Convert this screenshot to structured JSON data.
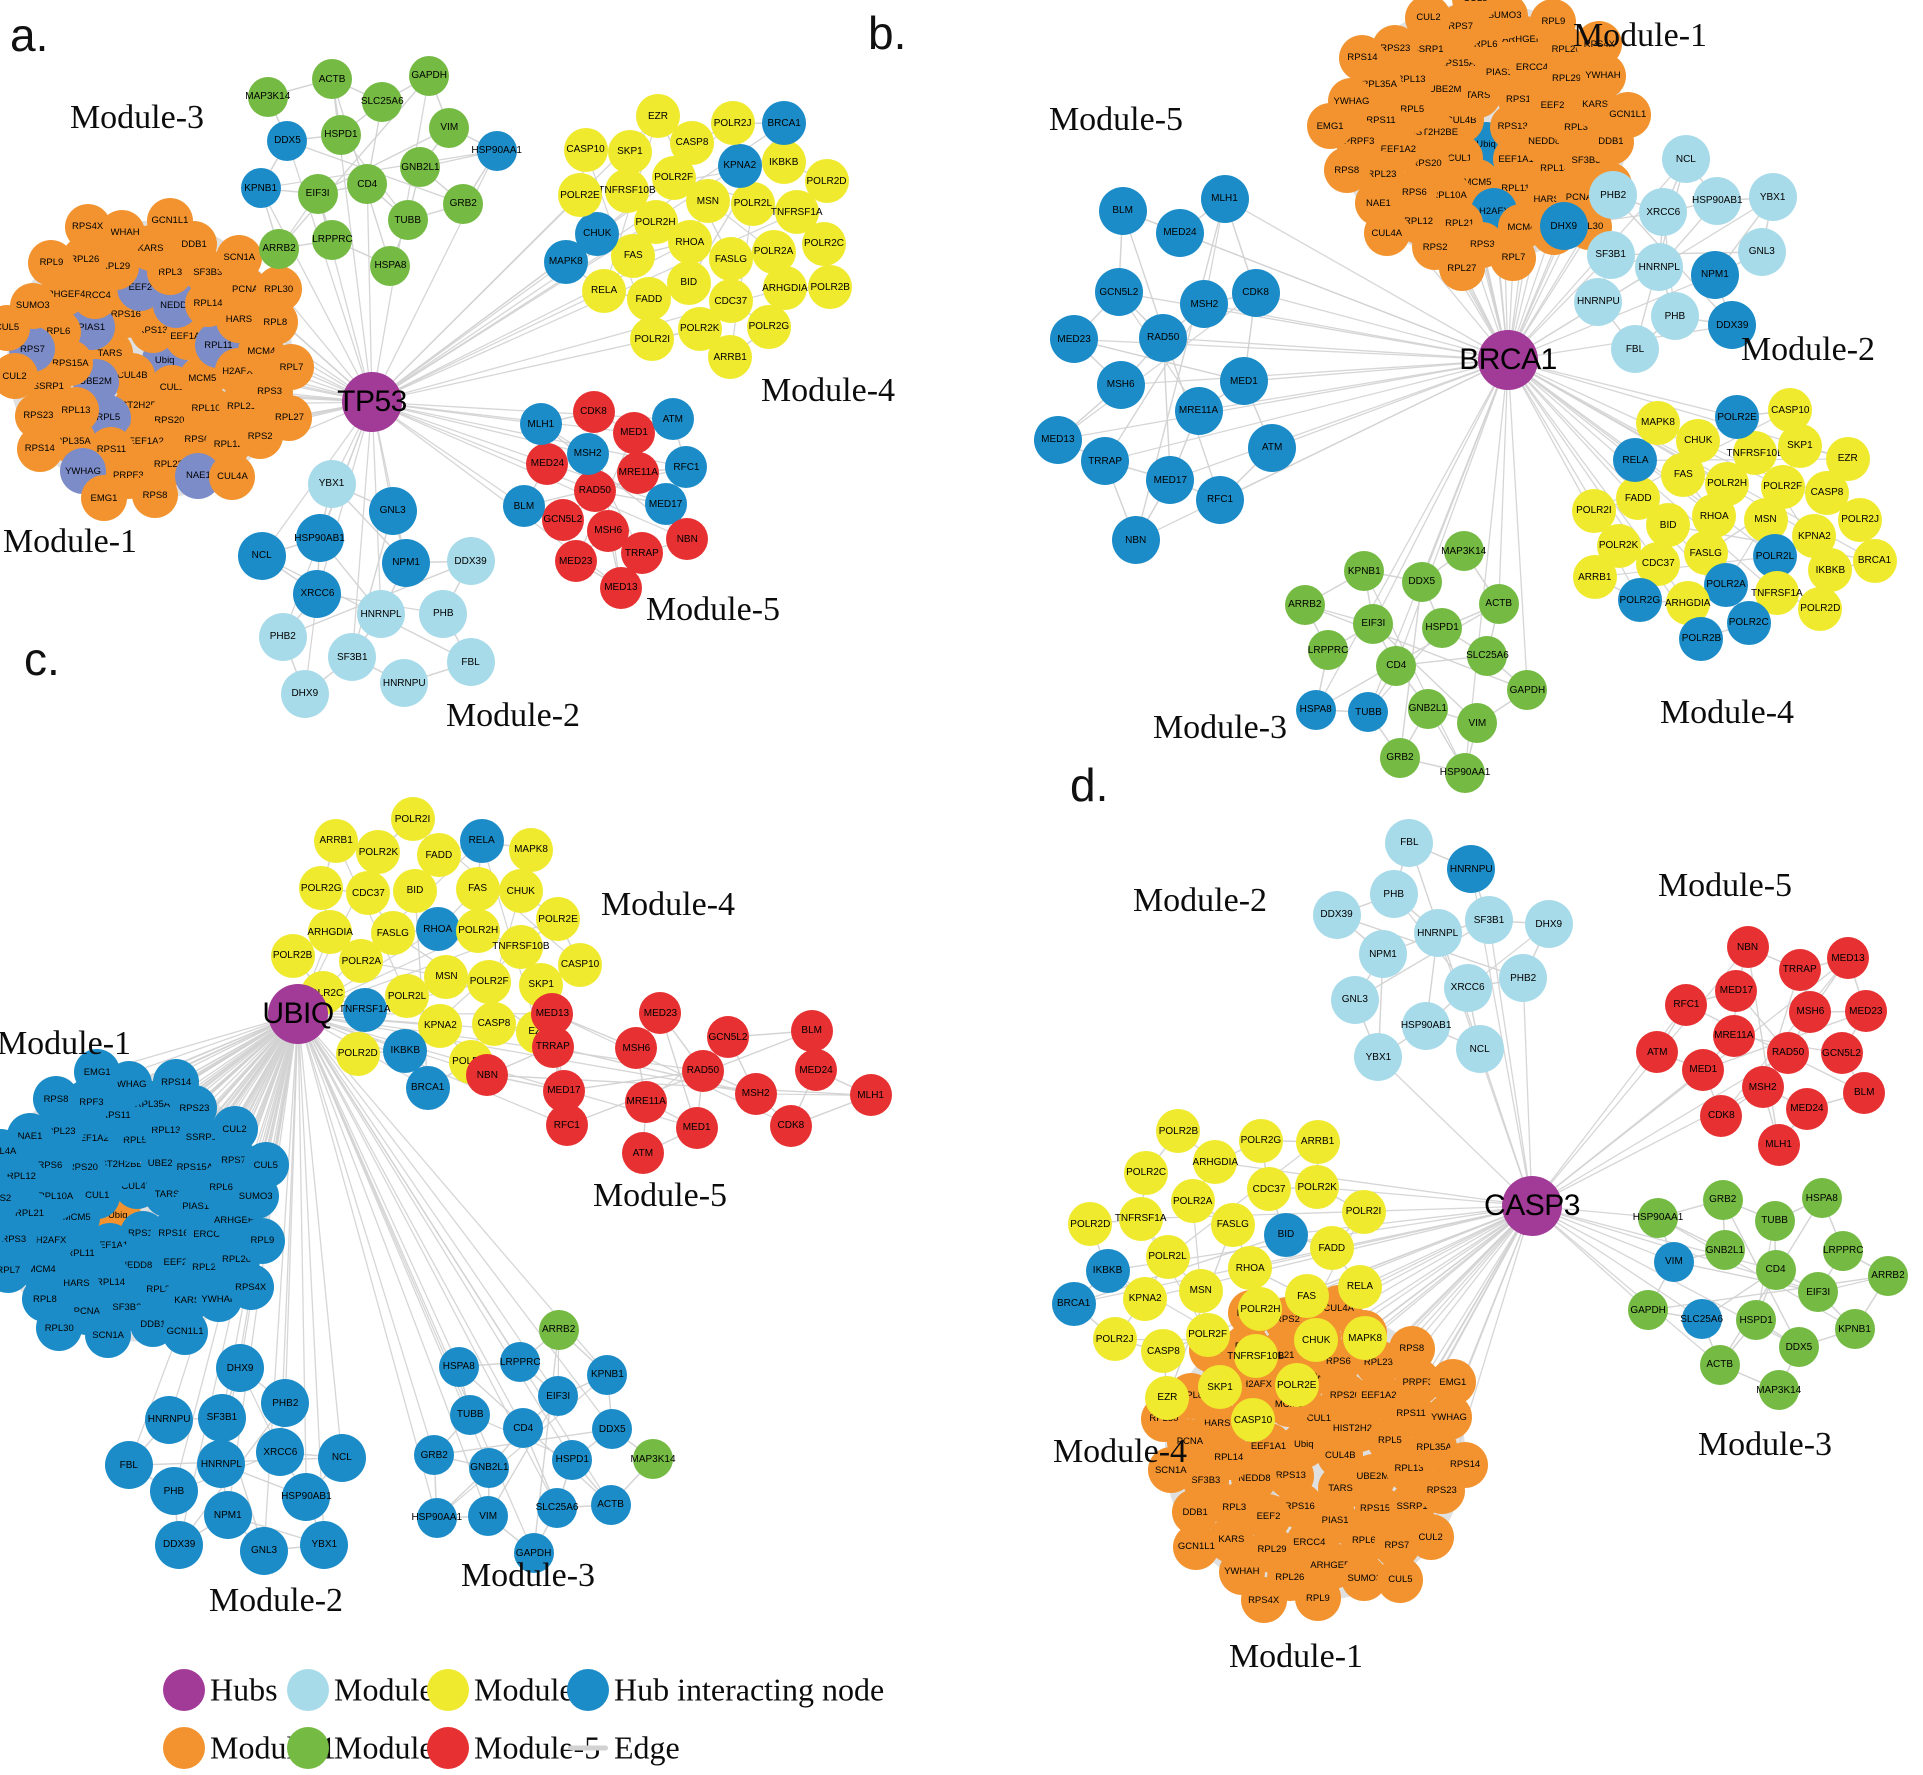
{
  "colors": {
    "hub": "#A23A97",
    "m1": "#F2932F",
    "m2": "#A8DBE9",
    "m3": "#74BA43",
    "m4": "#F0EA2E",
    "m5": "#E73031",
    "hib": "#1B8CC8",
    "slate": "#7C8CC9",
    "edge": "#D2D2D2"
  },
  "modules": {
    "module1_genes": [
      "Ubiq",
      "CUL4B",
      "RPS13",
      "CUL1",
      "TARS",
      "EEF1A1",
      "HIST2H2BE",
      "RPS16",
      "MCM5",
      "UBE2M",
      "NEDD8",
      "RPS20",
      "PIAS1",
      "RPL11",
      "RPL5",
      "EEF2",
      "RPL10A",
      "RPS15A",
      "RPL14",
      "EEF1A2",
      "ERCC4",
      "H2AFX",
      "RPL13",
      "RPL3",
      "RPS6",
      "RPL6",
      "HARS",
      "RPS11",
      "RPL29",
      "RPL21",
      "SSRP1",
      "SF3B3",
      "RPL23",
      "ARHGEF4",
      "MCM4",
      "RPL35A",
      "KARS",
      "RPL12",
      "RPS7",
      "PCNA",
      "PRPF3",
      "RPL26",
      "RPS3",
      "RPS23",
      "DDB1",
      "NAE1",
      "SUMO3",
      "RPL8",
      "YWHAG",
      "YWHAH",
      "RPS2",
      "CUL2",
      "SCN1A",
      "RPS8",
      "RPL9",
      "RPL7",
      "RPS14",
      "GCN1L1",
      "CUL4A",
      "CUL5",
      "RPL30",
      "EMG1",
      "RPS4X",
      "RPL27"
    ],
    "module2_genes": [
      "HNRNPL",
      "XRCC6",
      "NPM1",
      "SF3B1",
      "HSP90AB1",
      "PHB",
      "PHB2",
      "GNL3",
      "HNRNPU",
      "NCL",
      "DDX39",
      "DHX9",
      "YBX1",
      "FBL"
    ],
    "module3_genes": [
      "CD4",
      "HSPD1",
      "GNB2L1",
      "EIF3I",
      "SLC25A6",
      "TUBB",
      "DDX5",
      "VIM",
      "LRPPRC",
      "ACTB",
      "GRB2",
      "KPNB1",
      "GAPDH",
      "HSPA8",
      "MAP3K14",
      "HSP90AA1",
      "ARRB2"
    ],
    "module4_genes": [
      "RHOA",
      "MSN",
      "FASLG",
      "POLR2H",
      "POLR2L",
      "BID",
      "POLR2F",
      "POLR2A",
      "FAS",
      "KPNA2",
      "CDC37",
      "TNFRSF10B",
      "TNFRSF1A",
      "FADD",
      "CASP8",
      "ARHGDIA",
      "CHUK",
      "IKBKB",
      "POLR2K",
      "SKP1",
      "POLR2C",
      "RELA",
      "POLR2J",
      "POLR2G",
      "POLR2E",
      "POLR2D",
      "POLR2I",
      "EZR",
      "POLR2B",
      "MAPK8",
      "BRCA1",
      "ARRB1",
      "CASP10"
    ],
    "module5_genes": [
      "RAD50",
      "MRE11A",
      "MSH6",
      "MSH2",
      "MED17",
      "GCN5L2",
      "MED1",
      "TRRAP",
      "MED24",
      "RFC1",
      "MED23",
      "CDK8",
      "NBN",
      "BLM",
      "ATM",
      "MED13",
      "MLH1"
    ]
  },
  "panels": [
    {
      "letter": "a.",
      "hub": {
        "label": "TP53"
      },
      "clusters": [
        {
          "module": "Module-1",
          "genes_ref": "module1_genes",
          "base_color": "m1",
          "overrides": {
            "RPL11": "slate",
            "RPL5": "slate",
            "EEF2": "slate",
            "UBE2M": "slate",
            "NEDD8": "slate",
            "PIAS1": "slate",
            "RPS7": "slate",
            "NAE1": "slate",
            "Ubiq": "slate",
            "YWHAG": "slate"
          }
        },
        {
          "module": "Module-2",
          "genes_ref": "module2_genes",
          "base_color": "m2",
          "overrides": {
            "XRCC6": "hib",
            "NPM1": "hib",
            "HSP90AB1": "hib",
            "GNL3": "hib",
            "NCL": "hib"
          }
        },
        {
          "module": "Module-3",
          "genes_ref": "module3_genes",
          "base_color": "m3",
          "overrides": {
            "DDX5": "hib",
            "KPNB1": "hib",
            "HSP90AA1": "hib"
          }
        },
        {
          "module": "Module-4",
          "genes_ref": "module4_genes",
          "base_color": "m4",
          "overrides": {
            "KPNA2": "hib",
            "CHUK": "hib",
            "MAPK8": "hib",
            "BRCA1": "hib"
          }
        },
        {
          "module": "Module-5",
          "genes_ref": "module5_genes",
          "base_color": "m5",
          "overrides": {
            "MSH2": "hib",
            "MED17": "hib",
            "BLM": "hib",
            "ATM": "hib",
            "RFC1": "hib",
            "MLH1": "hib"
          }
        }
      ]
    },
    {
      "letter": "b.",
      "hub": {
        "label": "BRCA1"
      },
      "clusters": [
        {
          "module": "Module-1",
          "genes_ref": "module1_genes",
          "base_color": "m1",
          "overrides": {
            "Ubiq": "hib",
            "H2AFX": "hib"
          }
        },
        {
          "module": "Module-2",
          "genes_ref": "module2_genes",
          "base_color": "m2",
          "overrides": {
            "NPM1": "hib",
            "DHX9": "hib",
            "DDX39": "hib"
          }
        },
        {
          "module": "Module-3",
          "genes_ref": "module3_genes",
          "base_color": "m3",
          "overrides": {
            "TUBB": "hib",
            "HSPA8": "hib"
          }
        },
        {
          "module": "Module-4",
          "genes_ref": "module4_genes",
          "base_color": "m4",
          "overrides": {
            "POLR2A": "hib",
            "POLR2B": "hib",
            "POLR2C": "hib",
            "POLR2L": "hib",
            "POLR2E": "hib",
            "POLR2G": "hib",
            "RELA": "hib"
          }
        },
        {
          "module": "Module-5",
          "genes_ref": "module5_genes",
          "base_color": "hib",
          "overrides": {}
        }
      ]
    },
    {
      "letter": "c.",
      "hub": {
        "label": "UBIQ"
      },
      "clusters": [
        {
          "module": "Module-1",
          "genes_ref": "module1_genes",
          "base_color": "hib",
          "overrides": {
            "Ubiq": "m1"
          }
        },
        {
          "module": "Module-2",
          "genes_ref": "module2_genes",
          "base_color": "hib",
          "overrides": {}
        },
        {
          "module": "Module-3",
          "genes_ref": "module3_genes",
          "base_color": "hib",
          "overrides": {
            "ARRB2": "m3",
            "MAP3K14": "m3"
          }
        },
        {
          "module": "Module-4",
          "genes_ref": "module4_genes",
          "base_color": "m4",
          "overrides": {
            "BRCA1": "hib",
            "IKBKB": "hib",
            "TNFRSF1A": "hib",
            "RELA": "hib",
            "RHOA": "hib"
          }
        },
        {
          "module": "Module-5",
          "genes_ref": "module5_genes",
          "base_color": "m5",
          "overrides": {}
        }
      ]
    },
    {
      "letter": "d.",
      "hub": {
        "label": "CASP3"
      },
      "clusters": [
        {
          "module": "Module-1",
          "genes_ref": "module1_genes",
          "base_color": "m1",
          "overrides": {}
        },
        {
          "module": "Module-2",
          "genes_ref": "module2_genes",
          "base_color": "m2",
          "overrides": {
            "HNRNPU": "hib"
          }
        },
        {
          "module": "Module-3",
          "genes_ref": "module3_genes",
          "base_color": "m3",
          "overrides": {
            "VIM": "hib",
            "SLC25A6": "hib"
          }
        },
        {
          "module": "Module-4",
          "genes_ref": "module4_genes",
          "base_color": "m4",
          "overrides": {
            "BRCA1": "hib",
            "IKBKB": "hib",
            "BID": "hib"
          }
        },
        {
          "module": "Module-5",
          "genes_ref": "module5_genes",
          "base_color": "m5",
          "overrides": {}
        }
      ]
    }
  ],
  "legend": {
    "rows": [
      [
        {
          "label": "Hubs",
          "color": "hub",
          "type": "circle"
        },
        {
          "label": "Module-2",
          "color": "m2",
          "type": "circle"
        },
        {
          "label": "Module-4",
          "color": "m4",
          "type": "circle"
        },
        {
          "label": "Hub interacting node",
          "color": "hib",
          "type": "circle"
        }
      ],
      [
        {
          "label": "Module-1",
          "color": "m1",
          "type": "circle"
        },
        {
          "label": "Module-3",
          "color": "m3",
          "type": "circle"
        },
        {
          "label": "Module-5",
          "color": "m5",
          "type": "circle"
        },
        {
          "label": "Edge",
          "color": "edge",
          "type": "line"
        }
      ]
    ]
  }
}
